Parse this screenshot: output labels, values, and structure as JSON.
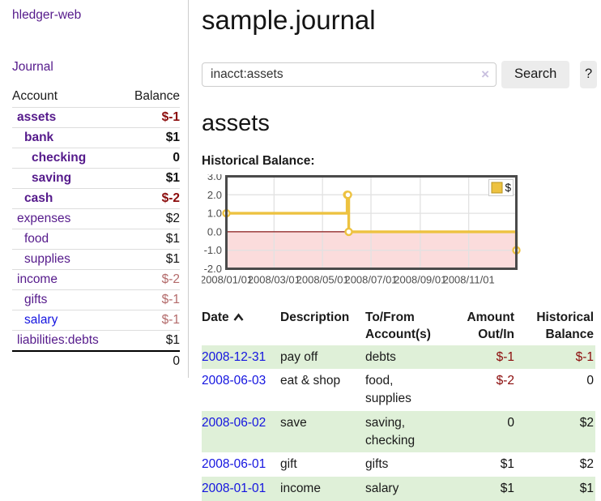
{
  "app": {
    "title": "hledger-web"
  },
  "nav": {
    "journal_label": "Journal"
  },
  "colors": {
    "link-visited": "#551a8b",
    "link-unvisited": "#1414e0",
    "negative": "#8b0b0b",
    "negative-muted": "#b36a6a",
    "row-stripe": "#dff0d8",
    "button-bg": "#ececec"
  },
  "sidebar": {
    "columns": {
      "account": "Account",
      "balance": "Balance"
    },
    "rows": [
      {
        "account": "assets",
        "indent": 1,
        "bold": true,
        "link_style": "v",
        "balance": "$-1",
        "balance_style": "neg"
      },
      {
        "account": "bank",
        "indent": 2,
        "bold": true,
        "link_style": "v",
        "balance": "$1",
        "balance_style": "pos"
      },
      {
        "account": "checking",
        "indent": 3,
        "bold": true,
        "link_style": "v",
        "balance": "0",
        "balance_style": "pos"
      },
      {
        "account": "saving",
        "indent": 3,
        "bold": true,
        "link_style": "v",
        "balance": "$1",
        "balance_style": "pos"
      },
      {
        "account": "cash",
        "indent": 2,
        "bold": true,
        "link_style": "v",
        "balance": "$-2",
        "balance_style": "neg"
      },
      {
        "account": "expenses",
        "indent": 1,
        "bold": false,
        "link_style": "v",
        "balance": "$2",
        "balance_style": "pos"
      },
      {
        "account": "food",
        "indent": 2,
        "bold": false,
        "link_style": "v",
        "balance": "$1",
        "balance_style": "pos"
      },
      {
        "account": "supplies",
        "indent": 2,
        "bold": false,
        "link_style": "v",
        "balance": "$1",
        "balance_style": "pos"
      },
      {
        "account": "income",
        "indent": 1,
        "bold": false,
        "link_style": "v",
        "balance": "$-2",
        "balance_style": "neg-light"
      },
      {
        "account": "gifts",
        "indent": 2,
        "bold": false,
        "link_style": "v",
        "balance": "$-1",
        "balance_style": "neg-light"
      },
      {
        "account": "salary",
        "indent": 2,
        "bold": false,
        "link_style": "u",
        "balance": "$-1",
        "balance_style": "neg-light"
      },
      {
        "account": "liabilities:debts",
        "indent": 1,
        "bold": false,
        "link_style": "v",
        "balance": "$1",
        "balance_style": "pos"
      }
    ],
    "total": "0"
  },
  "header": {
    "title": "sample.journal"
  },
  "search": {
    "value": "inacct:assets",
    "clear_icon": "×",
    "button_label": "Search",
    "help_label": "?"
  },
  "account_page": {
    "heading": "assets",
    "chart_label": "Historical Balance:"
  },
  "chart_data": {
    "type": "line",
    "step": true,
    "title": "Historical Balance:",
    "series": [
      {
        "name": "$",
        "color": "#edc240",
        "points": [
          [
            "2008-01-01",
            1
          ],
          [
            "2008-06-01",
            2
          ],
          [
            "2008-06-02",
            2
          ],
          [
            "2008-06-03",
            0
          ],
          [
            "2008-12-31",
            -1
          ]
        ]
      }
    ],
    "xlim": [
      "2008-01-01",
      "2008-12-31"
    ],
    "ylim": [
      -2,
      3
    ],
    "yticks": [
      "3.0",
      "2.0",
      "1.0",
      "0.0",
      "-1.0",
      "-2.0"
    ],
    "xticks": [
      "2008/01/01",
      "2008/03/01",
      "2008/05/01",
      "2008/07/01",
      "2008/09/01",
      "2008/11/01"
    ],
    "legend": {
      "label": "$",
      "position": "top-right"
    },
    "grid": true,
    "negative_region_color": "#fbdcdc",
    "zero_line_color": "#8b1a1a",
    "grid_color": "#e2e2e2",
    "border_color": "#4a4a4a",
    "tick_label_color": "#4d4d4d"
  },
  "register_table": {
    "columns": [
      "Date",
      "Description",
      "To/From Account(s)",
      "Amount Out/In",
      "Historical Balance"
    ],
    "sorted_column": "Date",
    "sort_direction": "asc",
    "rows": [
      {
        "date": "2008-12-31",
        "description": "pay off",
        "accounts": "debts",
        "amount": "$-1",
        "amount_style": "neg",
        "balance": "$-1",
        "balance_style": "neg"
      },
      {
        "date": "2008-06-03",
        "description": "eat & shop",
        "accounts": "food, supplies",
        "amount": "$-2",
        "amount_style": "neg",
        "balance": "0",
        "balance_style": "pos"
      },
      {
        "date": "2008-06-02",
        "description": "save",
        "accounts": "saving, checking",
        "amount": "0",
        "amount_style": "pos",
        "balance": "$2",
        "balance_style": "pos"
      },
      {
        "date": "2008-06-01",
        "description": "gift",
        "accounts": "gifts",
        "amount": "$1",
        "amount_style": "pos",
        "balance": "$2",
        "balance_style": "pos"
      },
      {
        "date": "2008-01-01",
        "description": "income",
        "accounts": "salary",
        "amount": "$1",
        "amount_style": "pos",
        "balance": "$1",
        "balance_style": "pos"
      }
    ]
  }
}
